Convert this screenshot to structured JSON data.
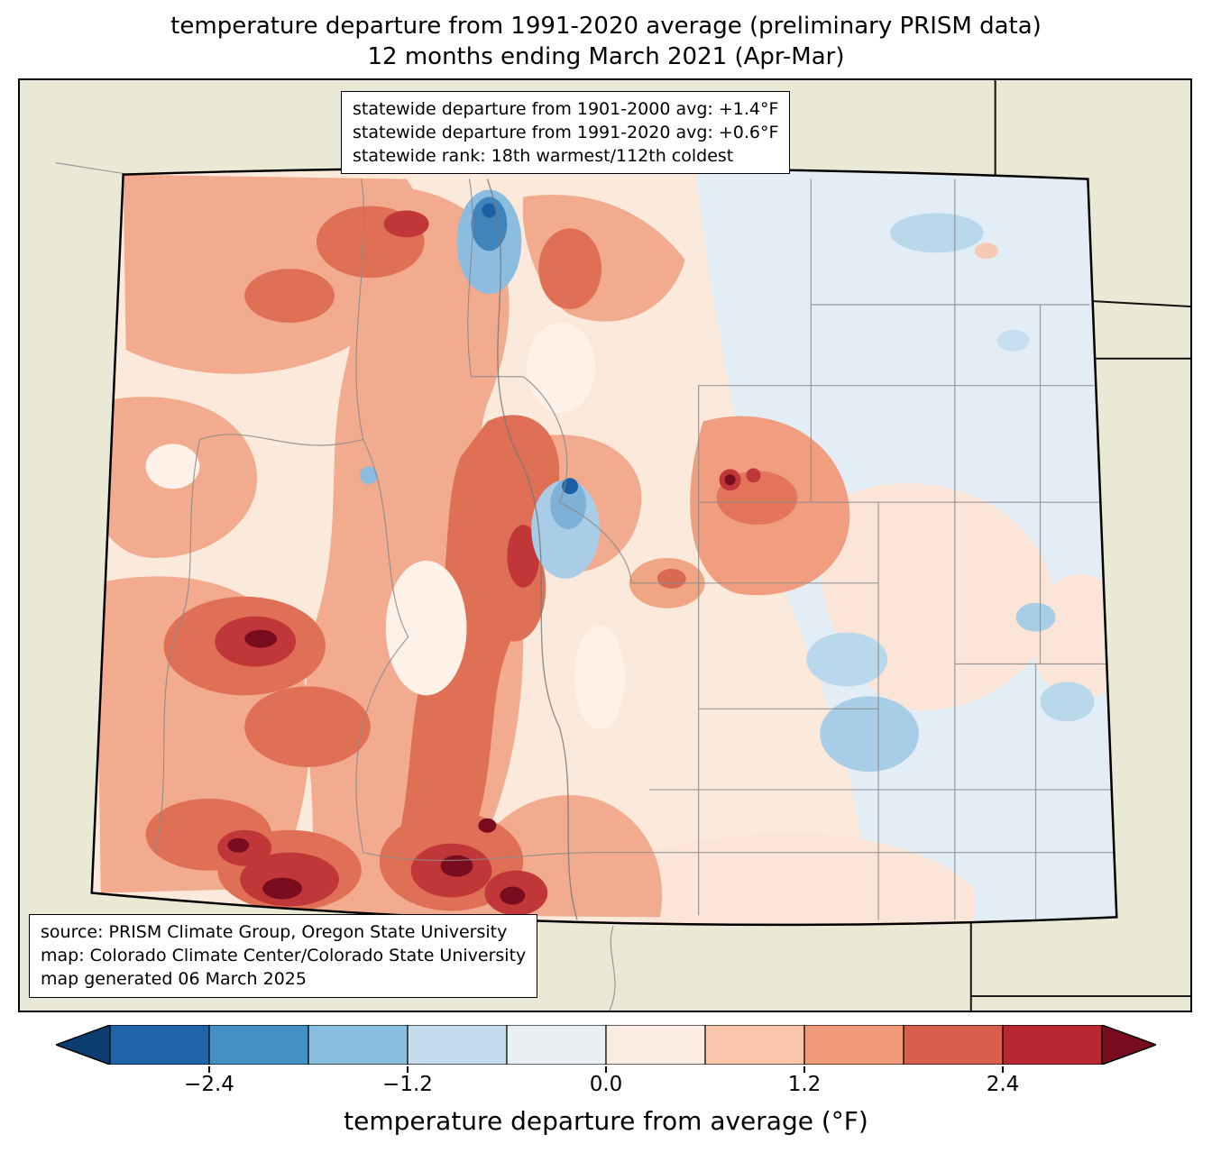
{
  "header": {
    "title_line1": "temperature departure from 1991-2020 average (preliminary PRISM data)",
    "title_line2": "12 months ending March 2021 (Apr-Mar)"
  },
  "stats_box": {
    "lines": [
      "statewide departure from 1901-2000 avg: +1.4°F",
      "statewide departure from 1991-2020 avg: +0.6°F",
      "statewide rank: 18th warmest/112th coldest"
    ]
  },
  "source_box": {
    "lines": [
      "source: PRISM Climate Group, Oregon State University",
      "map: Colorado Climate Center/Colorado State University",
      "map generated 06 March 2025"
    ]
  },
  "map": {
    "region": "Colorado",
    "background_color": "#e9e9d6",
    "state_border_color": "#000000",
    "county_border_color": "#8a8a8a",
    "warm_extreme_color": "#7a0c20",
    "cold_extreme_color": "#1c5fa5"
  },
  "colorbar": {
    "label": "temperature departure from average (°F)",
    "min": -3.0,
    "max": 3.0,
    "arrow_left_color": "#0b3d70",
    "arrow_right_color": "#7a0c20",
    "segment_colors": [
      "#1f63a8",
      "#4391c4",
      "#8abede",
      "#c3dcec",
      "#e9eff3",
      "#fdece2",
      "#f9c6ac",
      "#f09a79",
      "#d95f4c",
      "#b92732"
    ],
    "ticks": [
      {
        "value": -2.4,
        "label": "−2.4"
      },
      {
        "value": -1.2,
        "label": "−1.2"
      },
      {
        "value": 0.0,
        "label": "0.0"
      },
      {
        "value": 1.2,
        "label": "1.2"
      },
      {
        "value": 2.4,
        "label": "2.4"
      }
    ]
  },
  "chart_data": {
    "type": "heatmap",
    "title": "temperature departure from 1991-2020 average (preliminary PRISM data), 12 months ending March 2021 (Apr-Mar)",
    "legend_label": "temperature departure from average (°F)",
    "value_range": [
      -3.0,
      3.0
    ],
    "tick_values": [
      -2.4,
      -1.2,
      0.0,
      1.2,
      2.4
    ],
    "statewide_departure_1901_2000": 1.4,
    "statewide_departure_1991_2020": 0.6,
    "statewide_rank": "18th warmest/112th coldest"
  }
}
